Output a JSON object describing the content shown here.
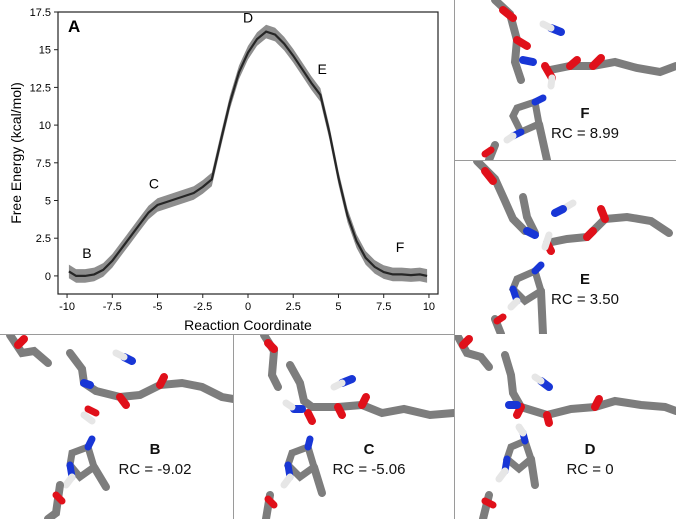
{
  "chart_data": {
    "type": "line",
    "panel_label": "A",
    "title": "",
    "xlabel": "Reaction Coordinate",
    "ylabel": "Free Energy (kcal/mol)",
    "xlim": [
      -10.5,
      10.5
    ],
    "ylim": [
      -1.2,
      17.5
    ],
    "xticks": [
      -10,
      -7.5,
      -5,
      -2.5,
      0,
      2.5,
      5,
      7.5,
      10
    ],
    "xtick_labels": [
      "-10",
      "-7.5",
      "-5",
      "-2.5",
      "0",
      "2.5",
      "5",
      "7.5",
      "10"
    ],
    "yticks": [
      0,
      2.5,
      5,
      7.5,
      10,
      12.5,
      15,
      17.5
    ],
    "ytick_labels": [
      "0",
      "2.5",
      "5",
      "7.5",
      "10",
      "12.5",
      "15",
      "17.5"
    ],
    "grid": false,
    "series": [
      {
        "name": "Free Energy",
        "x": [
          -9.9,
          -9.5,
          -9.0,
          -8.5,
          -8.0,
          -7.5,
          -7.0,
          -6.5,
          -6.0,
          -5.5,
          -5.0,
          -4.5,
          -4.0,
          -3.5,
          -3.0,
          -2.5,
          -2.0,
          -1.5,
          -1.0,
          -0.5,
          0.0,
          0.5,
          1.0,
          1.5,
          2.0,
          2.5,
          3.0,
          3.5,
          4.0,
          4.5,
          5.0,
          5.5,
          6.0,
          6.5,
          7.0,
          7.5,
          8.0,
          8.5,
          9.0,
          9.5,
          9.9
        ],
        "y": [
          0.3,
          0.0,
          0.0,
          0.1,
          0.4,
          1.0,
          1.8,
          2.6,
          3.4,
          4.2,
          4.7,
          4.9,
          5.1,
          5.3,
          5.5,
          5.9,
          6.4,
          9.0,
          11.5,
          13.5,
          14.8,
          15.7,
          16.2,
          16.0,
          15.4,
          14.6,
          13.7,
          12.8,
          12.0,
          9.5,
          6.5,
          4.0,
          2.3,
          1.2,
          0.6,
          0.25,
          0.1,
          0.1,
          0.05,
          0.1,
          0.0
        ],
        "uncertainty": 0.45
      }
    ],
    "annotations": [
      {
        "text": "B",
        "x": -8.9,
        "y": 1.2
      },
      {
        "text": "C",
        "x": -5.2,
        "y": 5.8
      },
      {
        "text": "D",
        "x": 0.0,
        "y": 16.8
      },
      {
        "text": "E",
        "x": 4.1,
        "y": 13.4
      },
      {
        "text": "F",
        "x": 8.4,
        "y": 1.6
      }
    ]
  },
  "structures": [
    {
      "id": "F",
      "label": "F",
      "rc_label": "RC = 8.99"
    },
    {
      "id": "E",
      "label": "E",
      "rc_label": "RC = 3.50"
    },
    {
      "id": "B",
      "label": "B",
      "rc_label": "RC = -9.02"
    },
    {
      "id": "C",
      "label": "C",
      "rc_label": "RC = -5.06"
    },
    {
      "id": "D",
      "label": "D",
      "rc_label": "RC = 0"
    }
  ],
  "colors": {
    "carbon": "#7d7d7d",
    "oxygen": "#e0101a",
    "nitrogen": "#1836d6",
    "hydrogen": "#e6e6e6",
    "curve": "#262626",
    "band": "#8e8e8e"
  }
}
